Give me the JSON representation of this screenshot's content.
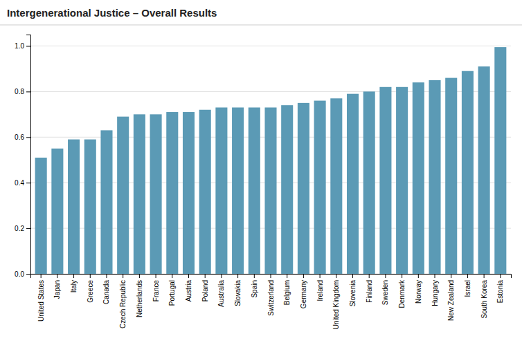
{
  "chart_data": {
    "type": "bar",
    "title": "Intergenerational Justice – Overall Results",
    "categories": [
      "United States",
      "Japan",
      "Italy",
      "Greece",
      "Canada",
      "Czech Republic",
      "Netherlands",
      "France",
      "Portugal",
      "Austria",
      "Poland",
      "Australia",
      "Slovakia",
      "Spain",
      "Switzerland",
      "Belgium",
      "Germany",
      "Ireland",
      "United Kingdom",
      "Slovenia",
      "Finland",
      "Sweden",
      "Denmark",
      "Norway",
      "Hungary",
      "New Zealand",
      "Israel",
      "South Korea",
      "Estonia"
    ],
    "values": [
      0.51,
      0.55,
      0.59,
      0.59,
      0.63,
      0.69,
      0.7,
      0.7,
      0.71,
      0.71,
      0.72,
      0.73,
      0.73,
      0.73,
      0.73,
      0.74,
      0.75,
      0.76,
      0.77,
      0.79,
      0.8,
      0.82,
      0.82,
      0.84,
      0.85,
      0.86,
      0.89,
      0.91,
      0.995
    ],
    "color": "#5b9ab5",
    "ylim": [
      0,
      1.05
    ],
    "yticks": [
      {
        "value": 0,
        "label": "0.0"
      },
      0.2,
      0.4,
      0.6,
      0.8,
      {
        "value": 1,
        "label": "1.0"
      }
    ],
    "grid": true
  }
}
